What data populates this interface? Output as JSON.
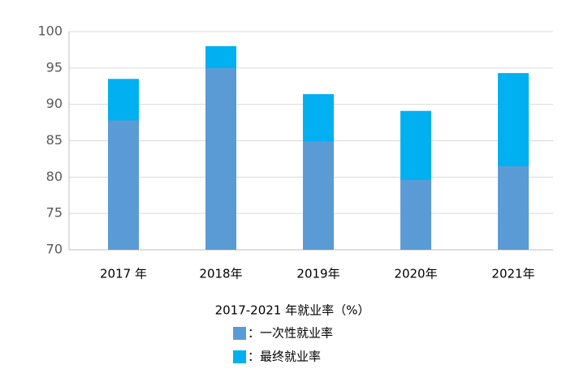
{
  "chart_data": {
    "type": "bar",
    "title": "2017-2021 年就业率（%）",
    "categories": [
      "2017 年",
      "2018年",
      "2019年",
      "2020年",
      "2021年"
    ],
    "series": [
      {
        "name": "：一次性就业率",
        "color": "#5b9bd5",
        "values": [
          87.8,
          95.0,
          84.9,
          79.6,
          81.5
        ]
      },
      {
        "name": "：最终就业率",
        "color": "#00b0f0",
        "values": [
          93.5,
          98.0,
          91.4,
          89.1,
          94.3
        ]
      }
    ],
    "ylim": [
      70,
      100
    ],
    "yticks": [
      70,
      75,
      80,
      85,
      90,
      95,
      100
    ],
    "grid": true,
    "overlap": true
  }
}
